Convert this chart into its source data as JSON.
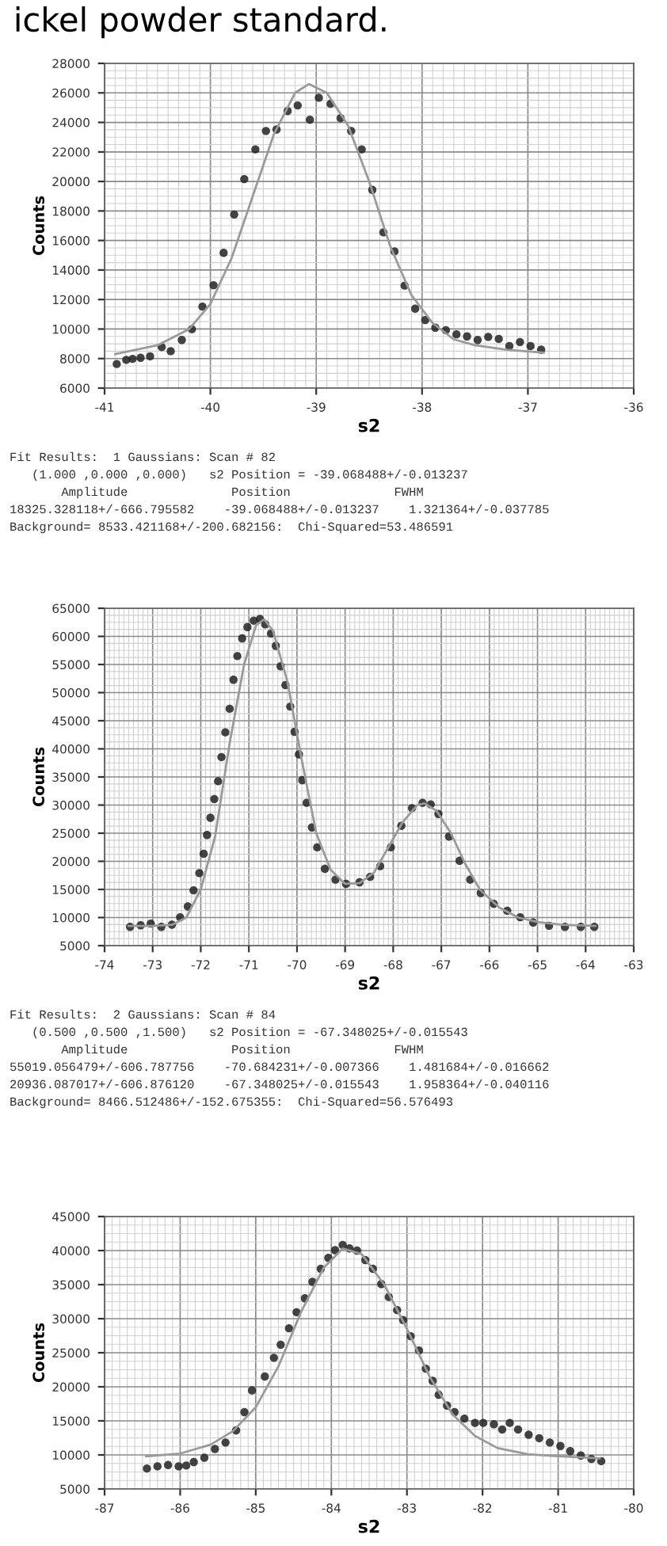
{
  "chart_data": [
    {
      "type": "scatter",
      "title": "ickel powder standard.",
      "xlabel": "s2",
      "ylabel": "Counts",
      "xlim": [
        -41,
        -36
      ],
      "xticks": [
        -41,
        -40,
        -39,
        -38,
        -37,
        -36
      ],
      "ylim": [
        6000,
        28000
      ],
      "yticks": [
        6000,
        8000,
        10000,
        12000,
        14000,
        16000,
        18000,
        20000,
        22000,
        24000,
        26000,
        28000
      ],
      "grid": true,
      "legend": false,
      "series": [
        {
          "color": "#222222",
          "marker": "circle",
          "x": [
            -40.885,
            -40.795,
            -40.735,
            -40.66,
            -40.57,
            -40.46,
            -40.375,
            -40.27,
            -40.175,
            -40.075,
            -39.97,
            -39.875,
            -39.775,
            -39.68,
            -39.575,
            -39.475,
            -39.375,
            -39.27,
            -39.175,
            -39.06,
            -38.975,
            -38.865,
            -38.77,
            -38.67,
            -38.57,
            -38.47,
            -38.365,
            -38.26,
            -38.165,
            -38.065,
            -37.97,
            -37.875,
            -37.775,
            -37.675,
            -37.575,
            -37.475,
            -37.375,
            -37.275,
            -37.175,
            -37.075,
            -36.975,
            -36.875
          ],
          "values": [
            7630,
            7910,
            7980,
            8050,
            8150,
            8780,
            8500,
            9260,
            9990,
            11520,
            12970,
            15160,
            17760,
            20160,
            22170,
            23420,
            23520,
            24770,
            25150,
            24180,
            25670,
            25260,
            24290,
            23420,
            22170,
            19430,
            16550,
            15260,
            12940,
            11380,
            10610,
            10090,
            9920,
            9640,
            9500,
            9260,
            9470,
            9330,
            8850,
            9120,
            8850,
            8600
          ]
        },
        {
          "type": "line",
          "color": "#9a9a9a",
          "x": [
            -40.9,
            -40.5,
            -40.2,
            -40.0,
            -39.8,
            -39.6,
            -39.4,
            -39.2,
            -39.07,
            -38.9,
            -38.7,
            -38.5,
            -38.3,
            -38.1,
            -37.9,
            -37.7,
            -37.5,
            -37.2,
            -36.85
          ],
          "values": [
            8300,
            8900,
            10000,
            11700,
            14800,
            19000,
            23200,
            26000,
            26600,
            26000,
            23800,
            20000,
            15600,
            12300,
            10400,
            9300,
            8900,
            8600,
            8400
          ]
        }
      ],
      "annotations": [
        "Fit Results:  1 Gaussians: Scan # 82",
        "   (1.000 ,0.000 ,0.000)   s2 Position = -39.068488+/-0.013237",
        "       Amplitude              Position              FWHM",
        "18325.328118+/-666.795582    -39.068488+/-0.013237    1.321364+/-0.037785",
        "Background= 8533.421168+/-200.682156:  Chi-Squared=53.486591"
      ]
    },
    {
      "type": "scatter",
      "xlabel": "s2",
      "ylabel": "Counts",
      "xlim": [
        -74,
        -63
      ],
      "xticks": [
        -74,
        -73,
        -72,
        -71,
        -70,
        -69,
        -68,
        -67,
        -66,
        -65,
        -64,
        -63
      ],
      "ylim": [
        5000,
        65000
      ],
      "yticks": [
        5000,
        10000,
        15000,
        20000,
        25000,
        30000,
        35000,
        40000,
        45000,
        50000,
        55000,
        60000,
        65000
      ],
      "grid": true,
      "legend": false,
      "series": [
        {
          "color": "#222222",
          "marker": "circle",
          "x": [
            -73.47,
            -73.25,
            -73.04,
            -72.82,
            -72.6,
            -72.43,
            -72.27,
            -72.15,
            -72.03,
            -71.94,
            -71.87,
            -71.8,
            -71.72,
            -71.64,
            -71.57,
            -71.49,
            -71.4,
            -71.32,
            -71.24,
            -71.14,
            -71.03,
            -70.9,
            -70.77,
            -70.66,
            -70.54,
            -70.44,
            -70.34,
            -70.24,
            -70.14,
            -70.05,
            -69.96,
            -69.89,
            -69.8,
            -69.69,
            -69.58,
            -69.42,
            -69.2,
            -68.98,
            -68.7,
            -68.48,
            -68.27,
            -68.05,
            -67.83,
            -67.61,
            -67.39,
            -67.22,
            -67.06,
            -66.84,
            -66.62,
            -66.4,
            -66.18,
            -65.91,
            -65.63,
            -65.36,
            -65.09,
            -64.76,
            -64.43,
            -64.1,
            -63.82
          ],
          "values": [
            8340,
            8630,
            8920,
            8340,
            8730,
            10060,
            11970,
            14840,
            17900,
            21340,
            24680,
            27740,
            31080,
            34240,
            38530,
            42930,
            47130,
            52290,
            56500,
            59650,
            61650,
            62800,
            63100,
            62130,
            60510,
            58310,
            54680,
            51340,
            47520,
            43030,
            39010,
            34430,
            30410,
            26020,
            22480,
            18660,
            16750,
            15990,
            16270,
            17230,
            19140,
            22480,
            26310,
            29460,
            30410,
            30130,
            28410,
            24400,
            20100,
            16750,
            14360,
            12450,
            11210,
            10060,
            9110,
            8540,
            8340,
            8340,
            8340
          ]
        },
        {
          "type": "line",
          "color": "#9a9a9a",
          "x": [
            -73.5,
            -73.0,
            -72.6,
            -72.3,
            -72.0,
            -71.7,
            -71.4,
            -71.1,
            -70.85,
            -70.68,
            -70.5,
            -70.2,
            -69.9,
            -69.6,
            -69.3,
            -69.0,
            -68.7,
            -68.4,
            -68.1,
            -67.8,
            -67.5,
            -67.35,
            -67.1,
            -66.8,
            -66.5,
            -66.2,
            -65.8,
            -65.4,
            -65.0,
            -64.5,
            -63.8
          ],
          "values": [
            8500,
            8500,
            8700,
            10000,
            15000,
            24500,
            41000,
            55000,
            62000,
            63000,
            61000,
            52000,
            38000,
            25000,
            18500,
            16000,
            16100,
            18000,
            22500,
            27000,
            30000,
            30300,
            29000,
            25000,
            19500,
            15000,
            11800,
            10000,
            9200,
            8700,
            8500
          ]
        }
      ],
      "annotations": [
        "Fit Results:  2 Gaussians: Scan # 84",
        "   (0.500 ,0.500 ,1.500)   s2 Position = -67.348025+/-0.015543",
        "       Amplitude              Position              FWHM",
        "55019.056479+/-606.787756    -70.684231+/-0.007366    1.481684+/-0.016662",
        "20936.087017+/-606.876120    -67.348025+/-0.015543    1.958364+/-0.040116",
        "Background= 8466.512486+/-152.675355:  Chi-Squared=56.576493"
      ]
    },
    {
      "type": "scatter",
      "xlabel": "s2",
      "ylabel": "Counts",
      "xlim": [
        -87,
        -80
      ],
      "xticks": [
        -87,
        -86,
        -85,
        -84,
        -83,
        -82,
        -81,
        -80
      ],
      "ylim": [
        5000,
        45000
      ],
      "yticks": [
        5000,
        10000,
        15000,
        20000,
        25000,
        30000,
        35000,
        40000,
        45000
      ],
      "grid": true,
      "legend": false,
      "series": [
        {
          "color": "#222222",
          "marker": "circle",
          "x": [
            -86.44,
            -86.3,
            -86.16,
            -86.02,
            -85.92,
            -85.82,
            -85.68,
            -85.54,
            -85.4,
            -85.26,
            -85.15,
            -85.05,
            -84.88,
            -84.76,
            -84.67,
            -84.56,
            -84.46,
            -84.35,
            -84.25,
            -84.14,
            -84.04,
            -83.95,
            -83.85,
            -83.76,
            -83.66,
            -83.55,
            -83.45,
            -83.34,
            -83.24,
            -83.13,
            -83.05,
            -82.95,
            -82.84,
            -82.75,
            -82.66,
            -82.58,
            -82.47,
            -82.37,
            -82.24,
            -82.1,
            -81.99,
            -81.85,
            -81.74,
            -81.64,
            -81.53,
            -81.39,
            -81.25,
            -81.11,
            -80.97,
            -80.84,
            -80.7,
            -80.56,
            -80.43
          ],
          "values": [
            8000,
            8320,
            8510,
            8320,
            8440,
            8950,
            9590,
            10870,
            11820,
            13610,
            16280,
            19470,
            21510,
            24260,
            26180,
            28590,
            30950,
            32990,
            35410,
            37320,
            38920,
            40060,
            40830,
            40320,
            40000,
            38600,
            37320,
            35090,
            33180,
            31260,
            29790,
            27430,
            25340,
            22660,
            20870,
            18830,
            17240,
            16280,
            15330,
            14690,
            14690,
            14500,
            13740,
            14690,
            13740,
            12970,
            12460,
            11820,
            11310,
            10550,
            9910,
            9400,
            9080
          ]
        },
        {
          "type": "line",
          "color": "#9a9a9a",
          "x": [
            -86.45,
            -86.0,
            -85.6,
            -85.3,
            -85.0,
            -84.7,
            -84.4,
            -84.1,
            -83.85,
            -83.6,
            -83.3,
            -83.0,
            -82.7,
            -82.4,
            -82.1,
            -81.8,
            -81.4,
            -81.0,
            -80.45
          ],
          "values": [
            9800,
            10200,
            11500,
            13500,
            17000,
            23000,
            31000,
            37500,
            40300,
            39500,
            35000,
            28500,
            21500,
            16000,
            12800,
            11000,
            10100,
            9800,
            9500
          ]
        }
      ]
    }
  ]
}
